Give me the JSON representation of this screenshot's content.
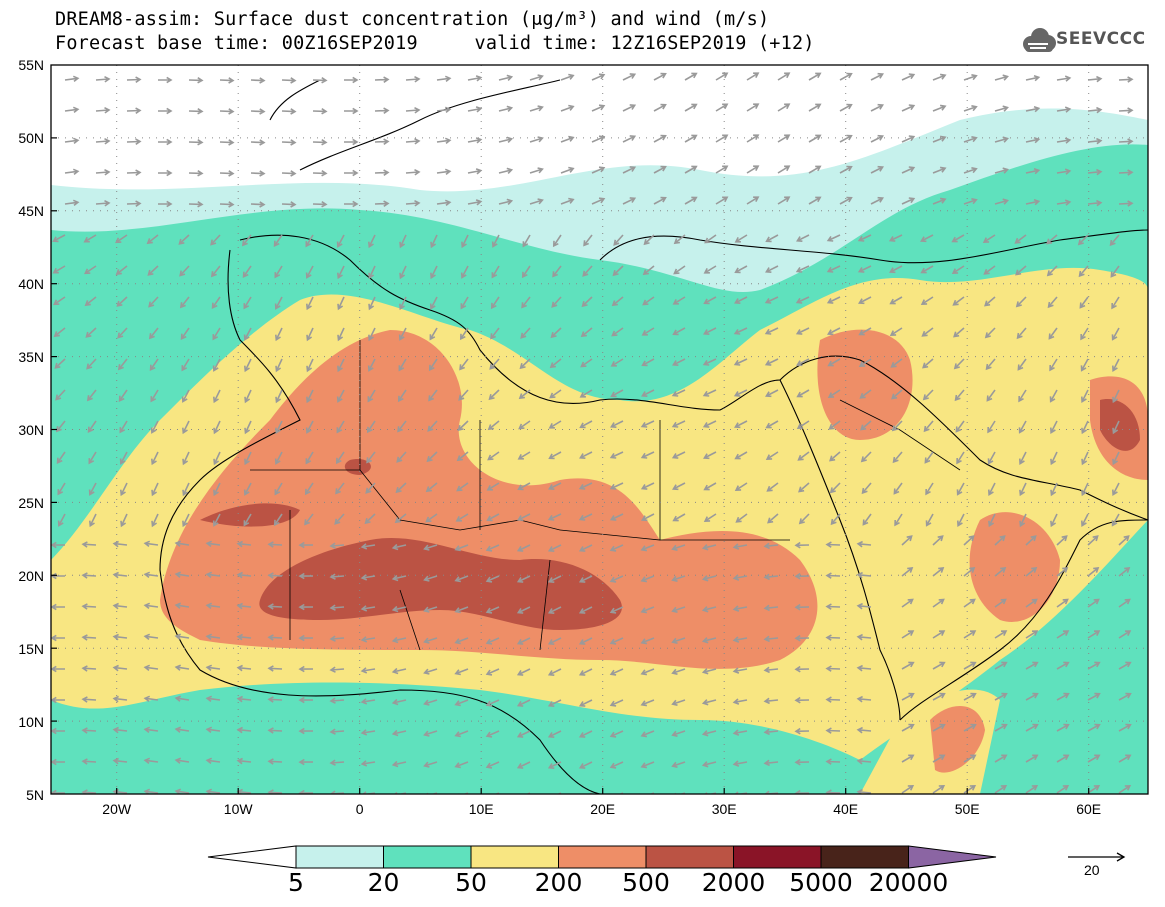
{
  "title": {
    "line1": "DREAM8-assim: Surface dust concentration (μg/m³) and wind (m/s)",
    "line2": "Forecast base time: 00Z16SEP2019     valid time: 12Z16SEP2019 (+12)"
  },
  "logo": {
    "text": "SEEVCCC"
  },
  "axes": {
    "lat_labels": [
      "55N",
      "50N",
      "45N",
      "40N",
      "35N",
      "30N",
      "25N",
      "20N",
      "15N",
      "10N",
      "5N"
    ],
    "lon_labels": [
      "20W",
      "10W",
      "0",
      "10E",
      "20E",
      "30E",
      "40E",
      "50E",
      "60E"
    ]
  },
  "colorbar": {
    "labels": [
      "5",
      "20",
      "50",
      "200",
      "500",
      "2000",
      "5000",
      "20000"
    ],
    "colors": [
      "#c6f1ec",
      "#5fe1bd",
      "#f8e682",
      "#ee8e67",
      "#bb5344",
      "#8a1427",
      "#48231a",
      "#8b65a3"
    ]
  },
  "wind_reference": {
    "label": "20"
  }
}
